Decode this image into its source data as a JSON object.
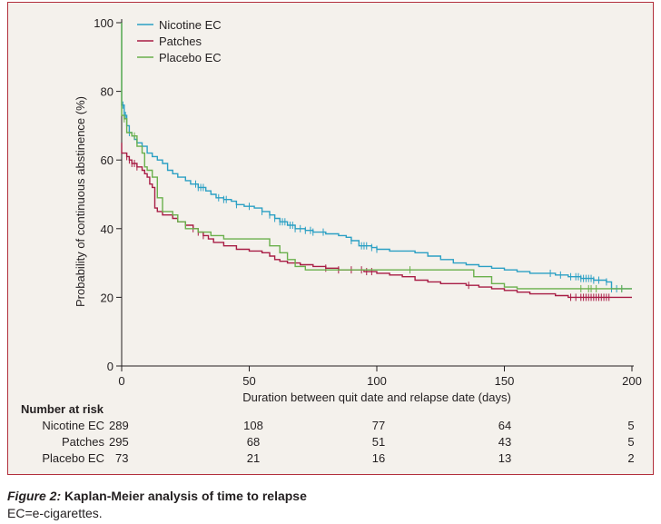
{
  "figure": {
    "number": "Figure 2:",
    "title": " Kaplan-Meier analysis of time to relapse",
    "footnote": "EC=e-cigarettes."
  },
  "risk_table": {
    "heading": "Number at risk",
    "rows": [
      {
        "label": "Nicotine EC",
        "first": "289",
        "values": [
          "108",
          "77",
          "64",
          "5"
        ]
      },
      {
        "label": "Patches",
        "first": "295",
        "values": [
          "68",
          "51",
          "43",
          "5"
        ]
      },
      {
        "label": "Placebo EC",
        "first": "73",
        "values": [
          "21",
          "16",
          "13",
          "2"
        ]
      }
    ]
  },
  "chart_data": {
    "type": "line",
    "subtype": "kaplan-meier step",
    "xlabel": "Duration between quit date and relapse date (days)",
    "ylabel": "Probability of continuous abstinence (%)",
    "xlim": [
      0,
      200
    ],
    "ylim": [
      0,
      100
    ],
    "xticks": [
      0,
      50,
      100,
      150,
      200
    ],
    "yticks": [
      0,
      20,
      40,
      60,
      80,
      100
    ],
    "grid": false,
    "legend_position": "top-left",
    "series": [
      {
        "name": "Nicotine EC",
        "color": "#2ba0c4",
        "steps": [
          [
            0,
            100
          ],
          [
            0,
            76
          ],
          [
            1,
            73
          ],
          [
            2,
            70
          ],
          [
            3,
            68
          ],
          [
            4,
            67
          ],
          [
            5,
            66
          ],
          [
            6,
            65
          ],
          [
            8,
            64
          ],
          [
            10,
            62
          ],
          [
            12,
            61
          ],
          [
            14,
            60
          ],
          [
            16,
            59
          ],
          [
            18,
            57
          ],
          [
            20,
            56
          ],
          [
            22,
            55
          ],
          [
            25,
            54
          ],
          [
            27,
            53
          ],
          [
            30,
            52
          ],
          [
            33,
            51
          ],
          [
            35,
            50
          ],
          [
            37,
            49
          ],
          [
            40,
            48.5
          ],
          [
            43,
            48
          ],
          [
            45,
            47
          ],
          [
            48,
            46.5
          ],
          [
            52,
            46
          ],
          [
            55,
            45
          ],
          [
            58,
            44
          ],
          [
            60,
            43
          ],
          [
            62,
            42
          ],
          [
            65,
            41
          ],
          [
            68,
            40
          ],
          [
            72,
            39.5
          ],
          [
            75,
            39
          ],
          [
            80,
            38.5
          ],
          [
            85,
            38
          ],
          [
            88,
            37.5
          ],
          [
            90,
            36.5
          ],
          [
            93,
            35
          ],
          [
            98,
            34.5
          ],
          [
            100,
            34
          ],
          [
            105,
            33.5
          ],
          [
            115,
            33
          ],
          [
            120,
            32
          ],
          [
            125,
            31
          ],
          [
            130,
            30
          ],
          [
            135,
            29.5
          ],
          [
            140,
            29
          ],
          [
            145,
            28.5
          ],
          [
            150,
            28
          ],
          [
            155,
            27.5
          ],
          [
            160,
            27
          ],
          [
            170,
            26.5
          ],
          [
            175,
            26
          ],
          [
            180,
            25.5
          ],
          [
            185,
            25
          ],
          [
            190,
            24.5
          ],
          [
            192,
            22.5
          ],
          [
            200,
            22.5
          ]
        ],
        "censor_x": [
          0.5,
          1.5,
          3,
          29,
          30,
          31,
          32,
          38,
          40,
          41,
          45,
          50,
          55,
          58,
          60,
          62,
          63,
          64,
          66,
          67,
          68,
          70,
          72,
          74,
          75,
          79,
          90,
          94,
          95,
          96,
          98,
          100,
          168,
          172,
          176,
          178,
          179,
          180,
          181,
          182,
          183,
          184,
          185,
          187,
          190,
          192,
          194,
          196
        ],
        "at_risk": [
          289,
          108,
          77,
          64,
          5
        ]
      },
      {
        "name": "Patches",
        "color": "#a81d45",
        "steps": [
          [
            0,
            65
          ],
          [
            0,
            62
          ],
          [
            2,
            61
          ],
          [
            3,
            60
          ],
          [
            4,
            59
          ],
          [
            6,
            58
          ],
          [
            8,
            57
          ],
          [
            9,
            56
          ],
          [
            10,
            55
          ],
          [
            11,
            53
          ],
          [
            12,
            52
          ],
          [
            13,
            46
          ],
          [
            14,
            45
          ],
          [
            16,
            44
          ],
          [
            20,
            43
          ],
          [
            22,
            42
          ],
          [
            25,
            41
          ],
          [
            28,
            40
          ],
          [
            30,
            39
          ],
          [
            32,
            38
          ],
          [
            34,
            37
          ],
          [
            36,
            36
          ],
          [
            40,
            35
          ],
          [
            45,
            34
          ],
          [
            50,
            33.5
          ],
          [
            55,
            33
          ],
          [
            58,
            32
          ],
          [
            60,
            31
          ],
          [
            62,
            30.5
          ],
          [
            65,
            30
          ],
          [
            70,
            29.5
          ],
          [
            75,
            29
          ],
          [
            80,
            28.5
          ],
          [
            85,
            28
          ],
          [
            95,
            27.5
          ],
          [
            100,
            27
          ],
          [
            105,
            26.5
          ],
          [
            110,
            26
          ],
          [
            115,
            25
          ],
          [
            120,
            24.5
          ],
          [
            125,
            24
          ],
          [
            135,
            23.5
          ],
          [
            140,
            23
          ],
          [
            145,
            22.5
          ],
          [
            150,
            22
          ],
          [
            155,
            21.5
          ],
          [
            160,
            21
          ],
          [
            170,
            20.5
          ],
          [
            175,
            20
          ],
          [
            200,
            20
          ]
        ],
        "censor_x": [
          2,
          3,
          4,
          5,
          6,
          28,
          30,
          32,
          80,
          85,
          90,
          94,
          96,
          98,
          136,
          176,
          178,
          180,
          181,
          182,
          183,
          184,
          185,
          186,
          187,
          188,
          189,
          190,
          191
        ],
        "at_risk": [
          295,
          68,
          51,
          43,
          5
        ]
      },
      {
        "name": "Placebo EC",
        "color": "#6ab04c",
        "steps": [
          [
            0,
            100
          ],
          [
            0,
            73
          ],
          [
            1,
            72
          ],
          [
            2,
            68
          ],
          [
            4,
            67
          ],
          [
            6,
            64
          ],
          [
            8,
            62
          ],
          [
            9,
            58
          ],
          [
            10,
            57
          ],
          [
            12,
            55
          ],
          [
            14,
            49
          ],
          [
            16,
            45
          ],
          [
            20,
            44
          ],
          [
            22,
            42
          ],
          [
            25,
            40
          ],
          [
            30,
            39
          ],
          [
            35,
            38
          ],
          [
            40,
            37
          ],
          [
            55,
            37
          ],
          [
            58,
            35
          ],
          [
            62,
            33
          ],
          [
            65,
            31
          ],
          [
            68,
            29
          ],
          [
            72,
            28
          ],
          [
            135,
            28
          ],
          [
            138,
            26
          ],
          [
            145,
            24
          ],
          [
            150,
            23
          ],
          [
            155,
            22.5
          ],
          [
            200,
            22.5
          ]
        ],
        "censor_x": [
          1,
          5,
          113,
          180,
          183,
          184,
          186,
          196
        ],
        "at_risk": [
          73,
          21,
          16,
          13,
          2
        ]
      }
    ]
  }
}
